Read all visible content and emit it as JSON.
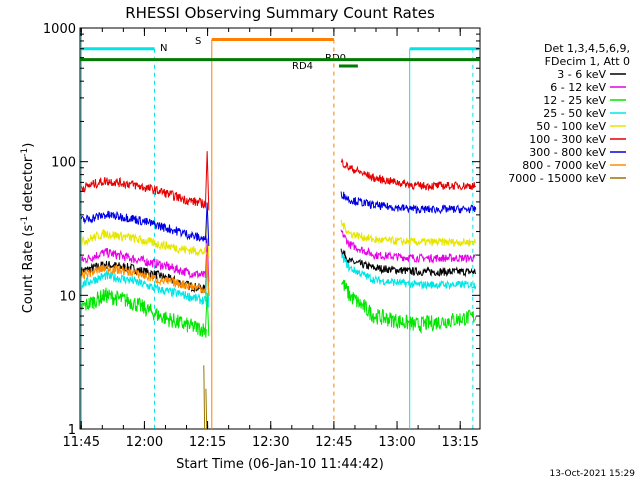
{
  "chart_data": {
    "type": "line",
    "title": "RHESSI Observing Summary Count Rates",
    "xlabel": "Start Time (06-Jan-10 11:44:42)",
    "ylabel_main": "Count Rate (s",
    "ylabel_sup1": "-1",
    "ylabel_mid": " detector",
    "ylabel_sup2": "-1",
    "ylabel_end": ")",
    "yscale": "log",
    "ylim": [
      1,
      1000
    ],
    "xlim_minutes": [
      0,
      95
    ],
    "x_ticks": [
      {
        "label": "11:45",
        "minute": 0.3
      },
      {
        "label": "12:00",
        "minute": 15.3
      },
      {
        "label": "12:15",
        "minute": 30.3
      },
      {
        "label": "12:30",
        "minute": 45.3
      },
      {
        "label": "12:45",
        "minute": 60.3
      },
      {
        "label": "13:00",
        "minute": 75.3
      },
      {
        "label": "13:15",
        "minute": 90.3
      }
    ],
    "y_ticks": [
      {
        "label": "1",
        "value": 1
      },
      {
        "label": "10",
        "value": 10
      },
      {
        "label": "100",
        "value": 100
      },
      {
        "label": "1000",
        "value": 1000
      }
    ],
    "legend_header": [
      "Det 1,3,4,5,6,9,",
      "FDecim 1, Att 0"
    ],
    "series": [
      {
        "name": "3 - 6 keV",
        "color": "#000000",
        "key_minutes": [
          0,
          6,
          12,
          19,
          25,
          30
        ],
        "key_values": [
          15,
          17,
          16,
          14,
          12,
          11
        ],
        "after_minutes": [
          62,
          64,
          70,
          80,
          95
        ],
        "after_values": [
          22,
          18,
          16,
          15,
          15
        ]
      },
      {
        "name": "6 - 12 keV",
        "color": "#e600e6",
        "key_minutes": [
          0,
          6,
          12,
          19,
          25,
          30
        ],
        "key_values": [
          18,
          21,
          19,
          17,
          15,
          14
        ],
        "after_minutes": [
          62,
          64,
          70,
          80,
          95
        ],
        "after_values": [
          30,
          24,
          20,
          19,
          19
        ]
      },
      {
        "name": "12 - 25 keV",
        "color": "#00e600",
        "key_minutes": [
          0,
          6,
          12,
          19,
          25,
          30
        ],
        "key_values": [
          8,
          10,
          9,
          7,
          6,
          5.5
        ],
        "after_minutes": [
          62,
          64,
          70,
          80,
          95
        ],
        "after_values": [
          13,
          10,
          7,
          6,
          7
        ]
      },
      {
        "name": "25 - 50 keV",
        "color": "#00e6e6",
        "key_minutes": [
          0,
          6,
          12,
          19,
          25,
          30
        ],
        "key_values": [
          12,
          14,
          13,
          11,
          10,
          9
        ],
        "after_minutes": [
          62,
          64,
          70,
          80,
          95
        ],
        "after_values": [
          20,
          16,
          13,
          12,
          12
        ]
      },
      {
        "name": "50 - 100 keV",
        "color": "#e6e600",
        "key_minutes": [
          0,
          6,
          12,
          19,
          25,
          30
        ],
        "key_values": [
          25,
          29,
          27,
          24,
          22,
          21
        ],
        "after_minutes": [
          62,
          64,
          70,
          80,
          95
        ],
        "after_values": [
          35,
          29,
          26,
          25,
          25
        ]
      },
      {
        "name": "100 - 300 keV",
        "color": "#e60000",
        "key_minutes": [
          0,
          6,
          12,
          19,
          25,
          30
        ],
        "key_values": [
          63,
          72,
          68,
          60,
          52,
          48
        ],
        "after_minutes": [
          62,
          64,
          70,
          80,
          95
        ],
        "after_values": [
          100,
          90,
          75,
          66,
          66
        ]
      },
      {
        "name": "300 - 800 keV",
        "color": "#0000e6",
        "key_minutes": [
          0,
          6,
          12,
          19,
          25,
          30
        ],
        "key_values": [
          36,
          40,
          38,
          33,
          29,
          26
        ],
        "after_minutes": [
          62,
          64,
          70,
          80,
          95
        ],
        "after_values": [
          58,
          52,
          47,
          44,
          44
        ]
      },
      {
        "name": "800 - 7000 keV",
        "color": "#ff8c00",
        "key_minutes": [
          0,
          6,
          12,
          19,
          25,
          30
        ],
        "key_values": [
          14,
          16,
          15,
          13,
          12,
          11
        ],
        "after_minutes": [],
        "after_values": []
      },
      {
        "name": "7000 - 15000 keV",
        "color": "#9a7600",
        "key_minutes": [],
        "key_values": [],
        "after_minutes": [],
        "after_values": []
      }
    ],
    "annotations": {
      "N_label": "N",
      "S_label": "S",
      "RD4_label": "RD4",
      "RD0_label": "RD0",
      "night_color": "#00e6e6",
      "saa_color": "#ff8000",
      "rd_color": "#007a00"
    },
    "timestamp": "13-Oct-2021 15:29"
  }
}
